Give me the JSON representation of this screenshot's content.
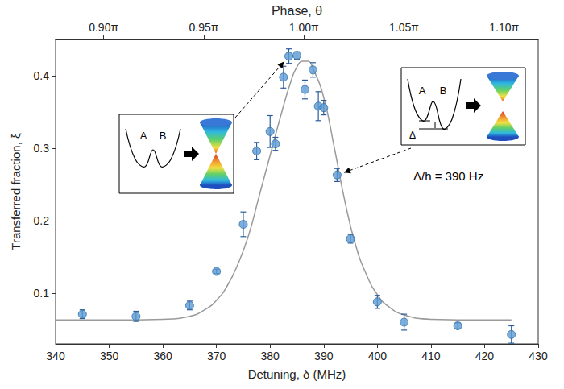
{
  "chart_data": {
    "type": "scatter",
    "x_label": "Detuning, δ (MHz)",
    "x2_label": "Phase, θ",
    "y_label": "Transferred fraction, ξ",
    "xlim": [
      340,
      430
    ],
    "xticks": [
      340,
      350,
      360,
      370,
      380,
      390,
      400,
      410,
      420,
      430
    ],
    "x2lim": [
      0.876,
      1.117
    ],
    "x2ticks": [
      {
        "value": 0.9,
        "label": "0.90π"
      },
      {
        "value": 0.95,
        "label": "0.95π"
      },
      {
        "value": 1.0,
        "label": "1.00π"
      },
      {
        "value": 1.05,
        "label": "1.05π"
      },
      {
        "value": 1.1,
        "label": "1.10π"
      }
    ],
    "ylim": [
      0.03,
      0.45
    ],
    "yticks": [
      0.1,
      0.2,
      0.3,
      0.4
    ],
    "grid": false,
    "series": [
      {
        "type": "line",
        "color": "#9a9a9a",
        "line_style": "solid",
        "x": [
          340,
          350,
          360,
          365,
          368,
          370,
          372,
          374,
          376,
          378,
          380,
          382,
          384,
          385,
          386,
          387,
          388,
          390,
          392,
          394,
          396,
          398,
          400,
          402,
          405,
          410,
          420,
          425
        ],
        "values": [
          0.063,
          0.063,
          0.064,
          0.068,
          0.078,
          0.09,
          0.11,
          0.14,
          0.18,
          0.235,
          0.29,
          0.345,
          0.395,
          0.412,
          0.42,
          0.42,
          0.41,
          0.37,
          0.3,
          0.225,
          0.165,
          0.125,
          0.098,
          0.082,
          0.07,
          0.064,
          0.063,
          0.063
        ]
      },
      {
        "type": "scatter",
        "color": "#5b9bd5",
        "marker": "circle",
        "x": [
          345,
          355,
          365,
          370,
          375,
          377.5,
          380,
          381,
          382.5,
          383.5,
          385,
          386.5,
          388,
          389,
          390,
          392.5,
          395,
          400,
          405,
          415,
          425
        ],
        "values": [
          0.071,
          0.068,
          0.083,
          0.13,
          0.195,
          0.296,
          0.323,
          0.306,
          0.398,
          0.427,
          0.428,
          0.381,
          0.408,
          0.358,
          0.356,
          0.263,
          0.175,
          0.088,
          0.06,
          0.055,
          0.043
        ],
        "errors": [
          0.006,
          0.007,
          0.006,
          0.003,
          0.017,
          0.012,
          0.022,
          0.009,
          0.015,
          0.01,
          0.005,
          0.013,
          0.01,
          0.02,
          0.01,
          0.009,
          0.006,
          0.009,
          0.011,
          0.004,
          0.012
        ]
      }
    ],
    "insets": [
      {
        "well_labels": [
          "A",
          "B"
        ],
        "target": {
          "x": 383.5,
          "y": 0.427
        }
      },
      {
        "well_labels": [
          "A",
          "B"
        ],
        "gap_label": "Δ",
        "caption": "Δ/h = 390 Hz",
        "target": {
          "x": 392.5,
          "y": 0.263
        }
      }
    ]
  }
}
